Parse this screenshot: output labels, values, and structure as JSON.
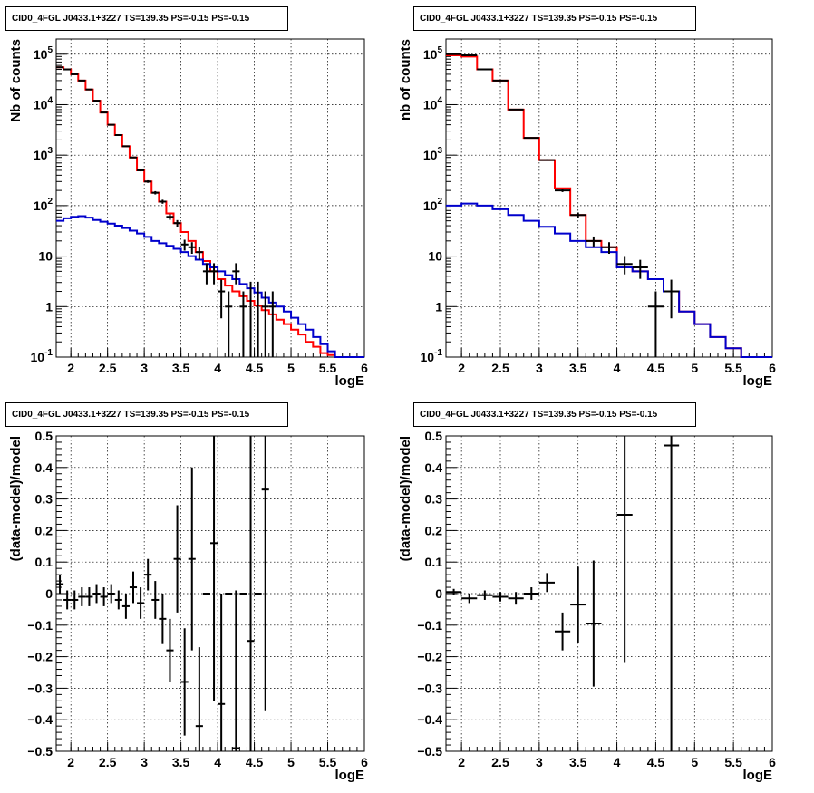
{
  "chart_data": [
    {
      "type": "line",
      "title": "CID0_4FGL J0433.1+3227 TS=139.35 PS=-0.15 PS=-0.15",
      "xlabel": "logE",
      "ylabel": "Nb of counts",
      "xlim": [
        1.8,
        6.0
      ],
      "ylim": [
        0.1,
        200000
      ],
      "yscale": "log",
      "grid": true,
      "x_ticks": [
        "2",
        "2.5",
        "3",
        "3.5",
        "4",
        "4.5",
        "5",
        "5.5",
        "6"
      ],
      "y_ticks": [
        "10^-1",
        "1",
        "10",
        "10^2",
        "10^3",
        "10^4",
        "10^5"
      ],
      "series": [
        {
          "color": "#ff0000",
          "style": "step",
          "bin_edges": [
            1.8,
            1.9,
            2.0,
            2.1,
            2.2,
            2.3,
            2.4,
            2.5,
            2.6,
            2.7,
            2.8,
            2.9,
            3.0,
            3.1,
            3.2,
            3.3,
            3.4,
            3.5,
            3.6,
            3.7,
            3.8,
            3.9,
            4.0,
            4.1,
            4.2,
            4.3,
            4.4,
            4.5,
            4.6,
            4.7,
            4.8,
            4.9,
            5.0,
            5.1,
            5.2,
            5.3,
            5.4,
            5.5,
            5.6,
            5.7,
            5.8,
            5.9,
            6.0
          ],
          "values": [
            55000,
            50000,
            40000,
            30000,
            20000,
            12000,
            7000,
            4000,
            2500,
            1500,
            900,
            500,
            300,
            180,
            120,
            70,
            45,
            30,
            20,
            12,
            8,
            5,
            3.5,
            2.6,
            2.0,
            1.6,
            1.3,
            1.05,
            0.85,
            0.7,
            0.55,
            0.45,
            0.35,
            0.28,
            0.2,
            0.16,
            0.12,
            0.11,
            0.1,
            0.1,
            0.1,
            0.1
          ]
        },
        {
          "color": "#0000cc",
          "style": "step",
          "bin_edges": [
            1.8,
            1.9,
            2.0,
            2.1,
            2.2,
            2.3,
            2.4,
            2.5,
            2.6,
            2.7,
            2.8,
            2.9,
            3.0,
            3.1,
            3.2,
            3.3,
            3.4,
            3.5,
            3.6,
            3.7,
            3.8,
            3.9,
            4.0,
            4.1,
            4.2,
            4.3,
            4.4,
            4.5,
            4.6,
            4.7,
            4.8,
            4.9,
            5.0,
            5.1,
            5.2,
            5.3,
            5.4,
            5.5,
            5.6,
            5.7,
            5.8,
            5.9,
            6.0
          ],
          "values": [
            50,
            56,
            60,
            62,
            58,
            52,
            48,
            44,
            40,
            36,
            32,
            28,
            24,
            20,
            18,
            16,
            14,
            12,
            10,
            8.5,
            7,
            6,
            5,
            4.2,
            3.5,
            2.8,
            2.3,
            1.9,
            1.5,
            1.2,
            1.0,
            0.8,
            0.6,
            0.45,
            0.35,
            0.25,
            0.18,
            0.13,
            0.1,
            0.1,
            0.1,
            0.1
          ]
        },
        {
          "color": "#000000",
          "style": "errorbar",
          "x": [
            1.85,
            1.95,
            2.05,
            2.15,
            2.25,
            2.35,
            2.45,
            2.55,
            2.65,
            2.75,
            2.85,
            2.95,
            3.05,
            3.15,
            3.25,
            3.35,
            3.45,
            3.55,
            3.65,
            3.75,
            3.85,
            3.95,
            4.05,
            4.15,
            4.25,
            4.35,
            4.45,
            4.55,
            4.65,
            4.75
          ],
          "y": [
            55000,
            50000,
            40000,
            30000,
            20000,
            12000,
            7000,
            4000,
            2500,
            1500,
            900,
            500,
            300,
            180,
            120,
            60,
            45,
            17,
            15,
            12,
            5,
            5,
            2,
            1,
            5,
            1,
            0.1,
            0.1,
            1,
            1
          ],
          "xerr": 0.05
        }
      ]
    },
    {
      "type": "line",
      "title": "CID0_4FGL J0433.1+3227 TS=139.35 PS=-0.15 PS=-0.15",
      "xlabel": "logE",
      "ylabel": "nb of counts",
      "xlim": [
        1.8,
        6.0
      ],
      "ylim": [
        0.1,
        200000
      ],
      "yscale": "log",
      "grid": true,
      "x_ticks": [
        "2",
        "2.5",
        "3",
        "3.5",
        "4",
        "4.5",
        "5",
        "5.5",
        "6"
      ],
      "y_ticks": [
        "10^-1",
        "1",
        "10",
        "10^2",
        "10^3",
        "10^4",
        "10^5"
      ],
      "series": [
        {
          "color": "#ff0000",
          "style": "step",
          "bin_edges": [
            1.8,
            2.0,
            2.2,
            2.4,
            2.6,
            2.8,
            3.0,
            3.2,
            3.4,
            3.6,
            3.8,
            4.0,
            4.2,
            4.4,
            4.6,
            4.8,
            5.0,
            5.2,
            5.4,
            5.6,
            5.8,
            6.0
          ],
          "values": [
            95000,
            90000,
            50000,
            30000,
            8000,
            2200,
            800,
            220,
            65,
            20,
            15,
            6,
            5,
            3.5,
            2,
            0.8,
            0.45,
            0.25,
            0.15,
            0.1,
            0.1
          ]
        },
        {
          "color": "#0000cc",
          "style": "step",
          "bin_edges": [
            1.8,
            2.0,
            2.2,
            2.4,
            2.6,
            2.8,
            3.0,
            3.2,
            3.4,
            3.6,
            3.8,
            4.0,
            4.2,
            4.4,
            4.6,
            4.8,
            5.0,
            5.2,
            5.4,
            5.6,
            5.8,
            6.0
          ],
          "values": [
            100,
            110,
            100,
            85,
            65,
            50,
            38,
            28,
            20,
            15,
            12,
            6,
            5,
            3.5,
            2,
            0.8,
            0.45,
            0.25,
            0.15,
            0.1,
            0.1
          ]
        },
        {
          "color": "#000000",
          "style": "errorbar",
          "x": [
            1.9,
            2.1,
            2.3,
            2.5,
            2.7,
            2.9,
            3.1,
            3.3,
            3.5,
            3.7,
            3.9,
            4.1,
            4.3,
            4.5,
            4.7
          ],
          "y": [
            100000,
            95000,
            50000,
            30000,
            8000,
            2200,
            800,
            200,
            65,
            20,
            15,
            7,
            6,
            1,
            2
          ],
          "xerr": 0.1
        }
      ]
    },
    {
      "type": "line",
      "title": "CID0_4FGL J0433.1+3227 TS=139.35 PS=-0.15 PS=-0.15",
      "xlabel": "logE",
      "ylabel": "(data-model)/model",
      "xlim": [
        1.8,
        6.0
      ],
      "ylim": [
        -0.5,
        0.5
      ],
      "grid": true,
      "x_ticks": [
        "2",
        "2.5",
        "3",
        "3.5",
        "4",
        "4.5",
        "5",
        "5.5",
        "6"
      ],
      "y_ticks": [
        "−0.5",
        "−0.4",
        "−0.3",
        "−0.2",
        "−0.1",
        "0",
        "0.1",
        "0.2",
        "0.3",
        "0.4",
        "0.5"
      ],
      "series": [
        {
          "color": "#000000",
          "style": "errorbar",
          "x": [
            1.85,
            1.95,
            2.05,
            2.15,
            2.25,
            2.35,
            2.45,
            2.55,
            2.65,
            2.75,
            2.85,
            2.95,
            3.05,
            3.15,
            3.25,
            3.35,
            3.45,
            3.55,
            3.65,
            3.75,
            3.85,
            3.95,
            4.05,
            4.15,
            4.25,
            4.35,
            4.45,
            4.55,
            4.65
          ],
          "y": [
            0.03,
            -0.02,
            -0.02,
            -0.01,
            -0.01,
            0.0,
            -0.01,
            0.0,
            -0.02,
            -0.04,
            0.02,
            -0.03,
            0.06,
            -0.02,
            -0.08,
            -0.18,
            0.11,
            -0.28,
            0.11,
            -0.42,
            0.0,
            0.16,
            -0.35,
            0.0,
            -0.49,
            0.0,
            -0.15,
            0.0,
            0.33
          ],
          "yerr": [
            0.03,
            0.03,
            0.03,
            0.03,
            0.03,
            0.03,
            0.03,
            0.03,
            0.03,
            0.04,
            0.05,
            0.05,
            0.05,
            0.06,
            0.08,
            0.1,
            0.17,
            0.17,
            0.29,
            0.25,
            0.0,
            0.5,
            0.35,
            0.0,
            0.5,
            0.0,
            0.7,
            0.0,
            0.7
          ],
          "xerr": 0.05
        }
      ]
    },
    {
      "type": "line",
      "title": "CID0_4FGL J0433.1+3227 TS=139.35 PS=-0.15 PS=-0.15",
      "xlabel": "logE",
      "ylabel": "(data-model)/model",
      "xlim": [
        1.8,
        6.0
      ],
      "ylim": [
        -0.5,
        0.5
      ],
      "grid": true,
      "x_ticks": [
        "2",
        "2.5",
        "3",
        "3.5",
        "4",
        "4.5",
        "5",
        "5.5",
        "6"
      ],
      "y_ticks": [
        "−0.5",
        "−0.4",
        "−0.3",
        "−0.2",
        "−0.1",
        "0",
        "0.1",
        "0.2",
        "0.3",
        "0.4",
        "0.5"
      ],
      "series": [
        {
          "color": "#000000",
          "style": "errorbar",
          "x": [
            1.9,
            2.1,
            2.3,
            2.5,
            2.7,
            2.9,
            3.1,
            3.3,
            3.5,
            3.7,
            4.1,
            4.7
          ],
          "y": [
            0.005,
            -0.015,
            -0.005,
            -0.01,
            -0.015,
            0.0,
            0.035,
            -0.12,
            -0.035,
            -0.095,
            0.25,
            0.47
          ],
          "yerr": [
            0.01,
            0.015,
            0.015,
            0.015,
            0.02,
            0.02,
            0.03,
            0.06,
            0.12,
            0.2,
            0.47,
            0.97
          ],
          "xerr": 0.1
        }
      ]
    }
  ]
}
